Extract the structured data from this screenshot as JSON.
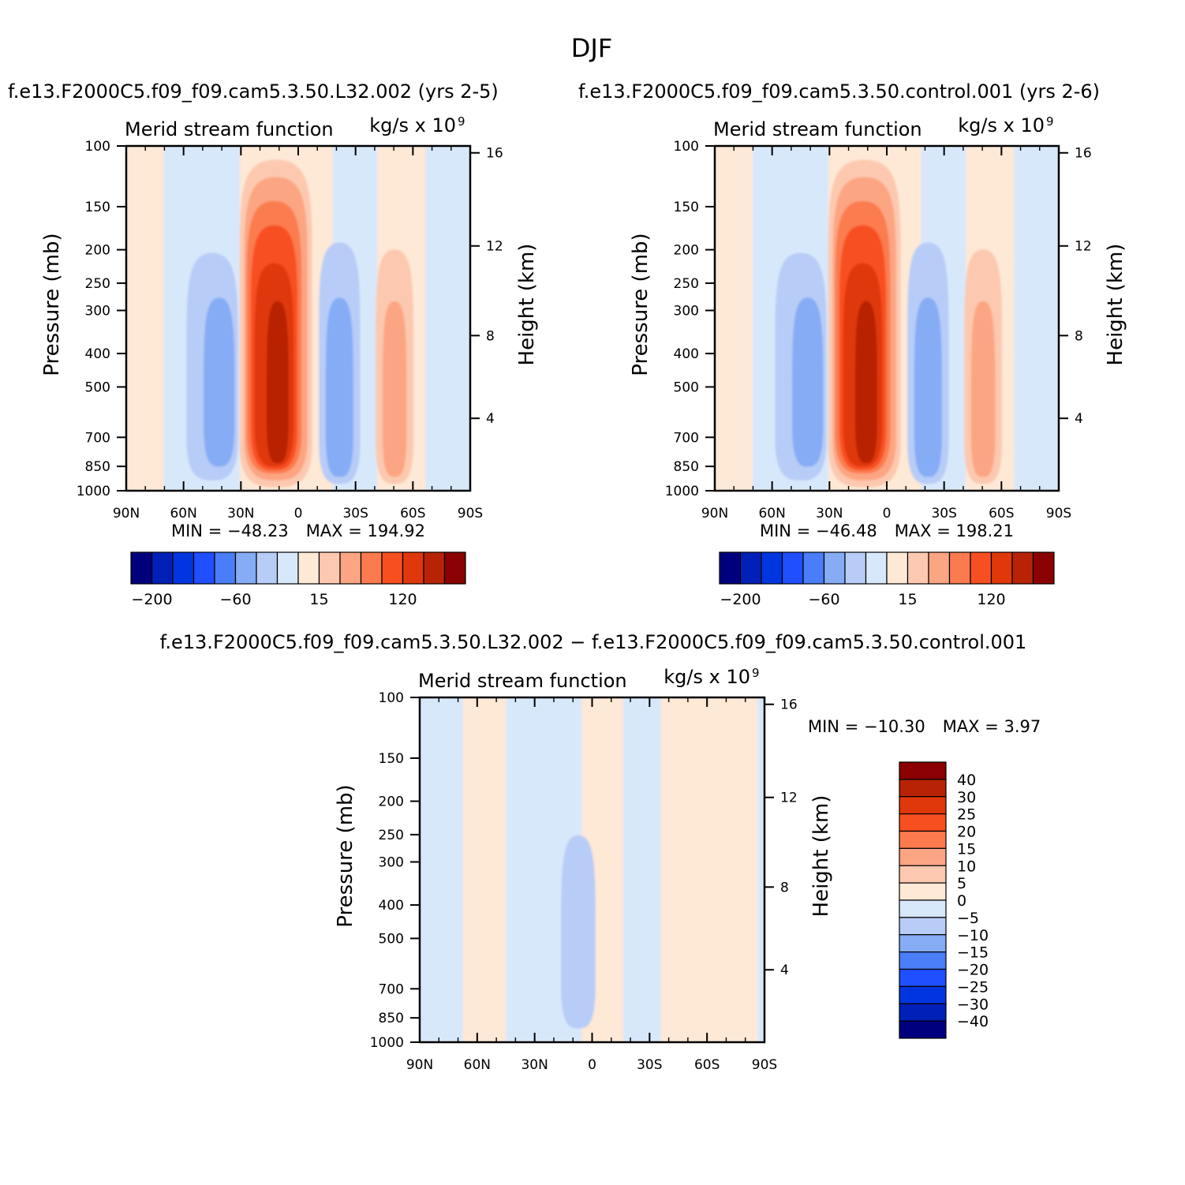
{
  "figure": {
    "title": "DJF",
    "lat_ticks": [
      "90N",
      "60N",
      "30N",
      "0",
      "30S",
      "60S",
      "90S"
    ],
    "p_ticks": [
      "100",
      "150",
      "200",
      "250",
      "300",
      "400",
      "500",
      "700",
      "850",
      "1000"
    ],
    "p_label": "Pressure (mb)",
    "h_label": "Height (km)",
    "panel_title": "Merid stream function",
    "units_base": "kg/s x 10",
    "units_exp": "9"
  },
  "chart_data": [
    {
      "type": "heatmap",
      "title": "f.e13.F2000C5.f09_f09.cam5.3.50.L32.002 (yrs 2-5)",
      "subtitle": "Merid stream function",
      "units": "kg/s x 10^9",
      "xlabel": "",
      "ylabel": "Pressure (mb)",
      "y2label": "Height (km)",
      "x_range": [
        "90N",
        "90S"
      ],
      "y_range": [
        1000,
        100
      ],
      "y_scale": "log",
      "y_ticks": [
        100,
        150,
        200,
        250,
        300,
        400,
        500,
        700,
        850,
        1000
      ],
      "y2_ticks": [
        4,
        8,
        12,
        16
      ],
      "stats": {
        "min_label": "MIN = −48.23",
        "max_label": "MAX = 194.92",
        "min": -48.23,
        "max": 194.92
      },
      "colorbar": {
        "orientation": "horizontal",
        "tick_labels": [
          "−200",
          "−60",
          "15",
          "120"
        ]
      },
      "features": [
        {
          "kind": "positive max",
          "lat": "~10N",
          "p_range": [
            850,
            300
          ],
          "level": ">=150"
        },
        {
          "kind": "negative min",
          "lat": "~40N",
          "p_range": [
            850,
            300
          ],
          "level": "-45"
        },
        {
          "kind": "negative min",
          "lat": "~25S",
          "p_range": [
            900,
            300
          ],
          "level": "-45"
        },
        {
          "kind": "positive max",
          "lat": "~50S",
          "p_range": [
            850,
            300
          ],
          "level": "15-30"
        }
      ]
    },
    {
      "type": "heatmap",
      "title": "f.e13.F2000C5.f09_f09.cam5.3.50.control.001 (yrs 2-6)",
      "subtitle": "Merid stream function",
      "units": "kg/s x 10^9",
      "xlabel": "",
      "ylabel": "Pressure (mb)",
      "y2label": "Height (km)",
      "x_range": [
        "90N",
        "90S"
      ],
      "y_range": [
        1000,
        100
      ],
      "y_scale": "log",
      "y_ticks": [
        100,
        150,
        200,
        250,
        300,
        400,
        500,
        700,
        850,
        1000
      ],
      "y2_ticks": [
        4,
        8,
        12,
        16
      ],
      "stats": {
        "min_label": "MIN = −46.48",
        "max_label": "MAX = 198.21",
        "min": -46.48,
        "max": 198.21
      },
      "colorbar": {
        "orientation": "horizontal",
        "tick_labels": [
          "−200",
          "−60",
          "15",
          "120"
        ]
      },
      "features": [
        {
          "kind": "positive max",
          "lat": "~10N",
          "p_range": [
            850,
            300
          ],
          "level": ">=150"
        },
        {
          "kind": "negative min",
          "lat": "~40N",
          "p_range": [
            850,
            300
          ],
          "level": "-45"
        },
        {
          "kind": "negative min",
          "lat": "~25S",
          "p_range": [
            900,
            300
          ],
          "level": "-45"
        },
        {
          "kind": "positive max",
          "lat": "~50S",
          "p_range": [
            850,
            300
          ],
          "level": "15-30"
        }
      ]
    },
    {
      "type": "heatmap",
      "title": "f.e13.F2000C5.f09_f09.cam5.3.50.L32.002 − f.e13.F2000C5.f09_f09.cam5.3.50.control.001",
      "subtitle": "Merid stream function",
      "units": "kg/s x 10^9",
      "xlabel": "",
      "ylabel": "Pressure (mb)",
      "y2label": "Height (km)",
      "x_range": [
        "90N",
        "90S"
      ],
      "y_range": [
        1000,
        100
      ],
      "y_scale": "log",
      "y_ticks": [
        100,
        150,
        200,
        250,
        300,
        400,
        500,
        700,
        850,
        1000
      ],
      "y2_ticks": [
        4,
        8,
        12,
        16
      ],
      "stats": {
        "min_label": "MIN = −10.30",
        "max_label": "MAX =    3.97",
        "min": -10.3,
        "max": 3.97
      },
      "colorbar": {
        "orientation": "vertical",
        "tick_labels": [
          "40",
          "30",
          "25",
          "20",
          "15",
          "10",
          "5",
          "0",
          "−5",
          "−10",
          "−15",
          "−20",
          "−25",
          "−30",
          "−40"
        ]
      },
      "features": [
        {
          "kind": "negative min",
          "lat": "~0",
          "p_range": [
            900,
            280
          ],
          "level": "-5 to -10"
        }
      ]
    }
  ],
  "colors": {
    "scale16": [
      "#00007f",
      "#0020b8",
      "#0036e0",
      "#1f4fff",
      "#4a7df8",
      "#85acf5",
      "#b7ccf7",
      "#d8e8fb",
      "#fee8d6",
      "#fcc9b0",
      "#fca583",
      "#fb7b4f",
      "#f84f20",
      "#e0380a",
      "#b82305",
      "#8b0000"
    ],
    "scale16_diff": [
      "#00007f",
      "#0020b8",
      "#0036e0",
      "#1f4fff",
      "#4a7df8",
      "#85acf5",
      "#b7ccf7",
      "#d8e8fb",
      "#fee8d6",
      "#fcc9b0",
      "#fca583",
      "#fb7b4f",
      "#f84f20",
      "#e0380a",
      "#b82305",
      "#8b0000"
    ]
  }
}
